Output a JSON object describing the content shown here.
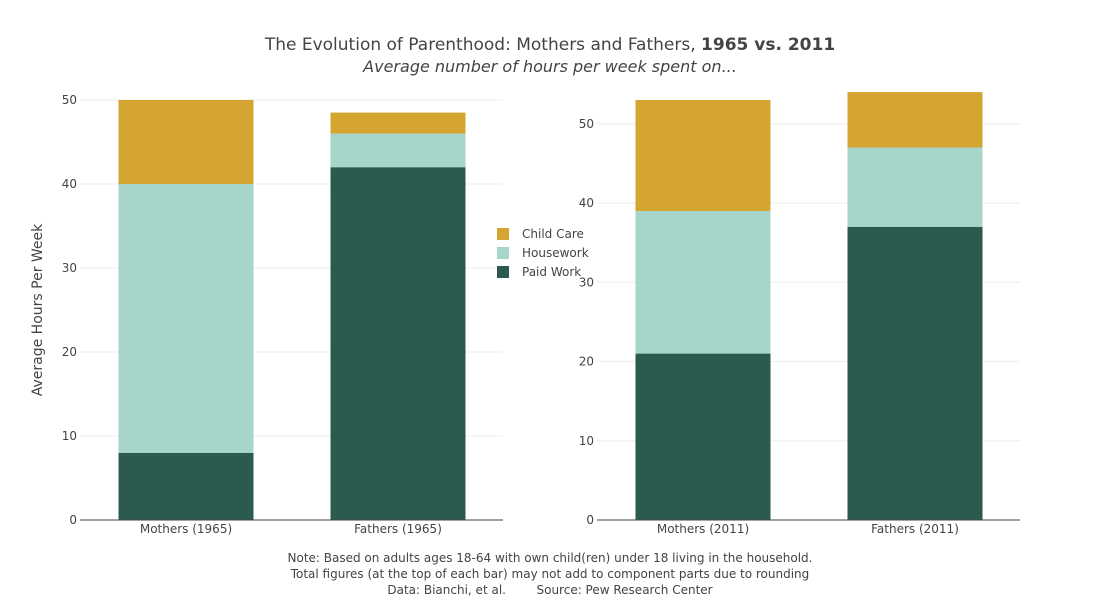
{
  "colors": {
    "child_care": "#d4a631",
    "housework": "#a6d5ca",
    "paid_work": "#2b5a4f",
    "grid": "#eeeeee",
    "axis": "#444444",
    "text": "#444444"
  },
  "chart_data": {
    "type": "bar",
    "stacked": true,
    "title": {
      "regular": "The Evolution of Parenthood: Mothers and Fathers, ",
      "bold": "1965 vs. 2011"
    },
    "subtitle": "Average number of hours per week spent on...",
    "ylabel": "Average Hours Per Week",
    "legend_position": "center, between panels",
    "grid": true,
    "legend": [
      {
        "name": "Child Care",
        "color": "#d4a631"
      },
      {
        "name": "Housework",
        "color": "#a6d5ca"
      },
      {
        "name": "Paid Work",
        "color": "#2b5a4f"
      }
    ],
    "panels": [
      {
        "ylim": [
          0,
          50
        ],
        "yticks": [
          0,
          10,
          20,
          30,
          40,
          50
        ],
        "categories": [
          "Mothers (1965)",
          "Fathers (1965)"
        ],
        "series": [
          {
            "name": "Paid Work",
            "values": [
              8,
              42
            ]
          },
          {
            "name": "Housework",
            "values": [
              32,
              4
            ]
          },
          {
            "name": "Child Care",
            "values": [
              10,
              2.5
            ]
          }
        ]
      },
      {
        "ylim": [
          0,
          53
        ],
        "yticks": [
          0,
          10,
          20,
          30,
          40,
          50
        ],
        "categories": [
          "Mothers (2011)",
          "Fathers (2011)"
        ],
        "series": [
          {
            "name": "Paid Work",
            "values": [
              21,
              37
            ]
          },
          {
            "name": "Housework",
            "values": [
              18,
              10
            ]
          },
          {
            "name": "Child Care",
            "values": [
              14,
              7
            ]
          }
        ]
      }
    ],
    "notes": [
      "Note: Based on adults ages 18-64 with own child(ren) under 18 living in the household.",
      "Total figures (at the top of each bar) may not add to component parts due to rounding",
      "Data: Bianchi, et al.        Source: Pew Research Center"
    ]
  }
}
